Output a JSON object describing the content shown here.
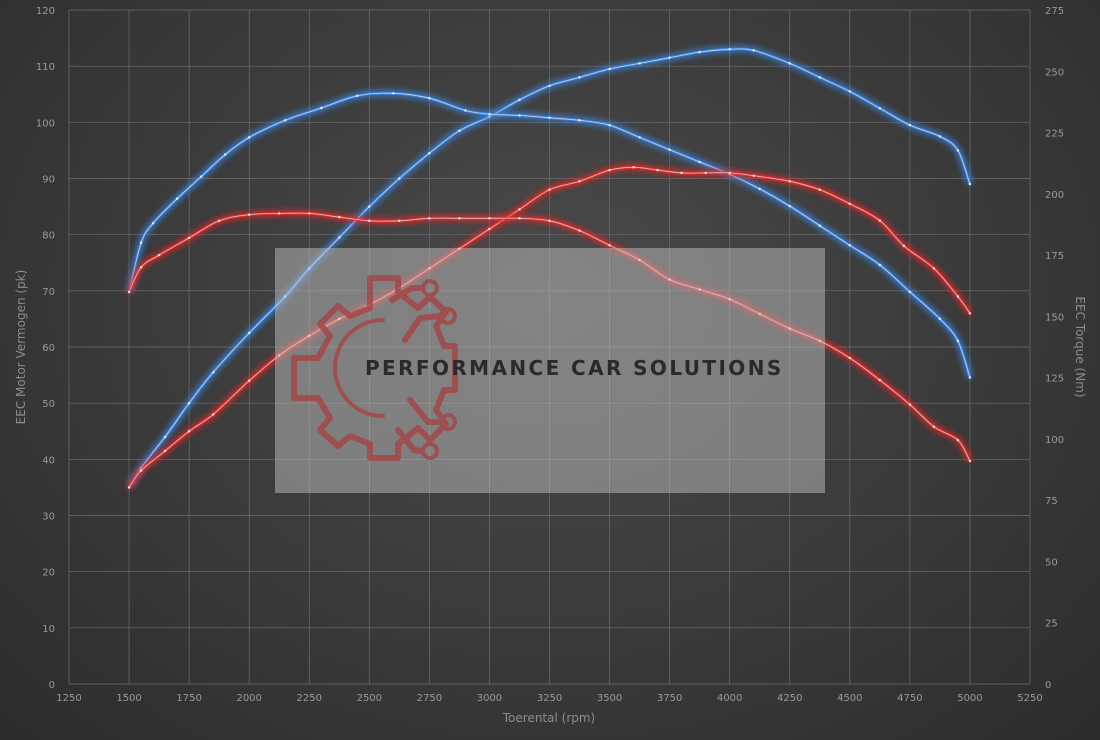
{
  "chart_data": {
    "type": "line",
    "xlabel": "Toerental (rpm)",
    "ylabel_left": "EEC Motor Vermogen (pk)",
    "ylabel_right": "EEC Torque (Nm)",
    "xlim": [
      1250,
      5250
    ],
    "ylim_left": [
      0,
      120
    ],
    "ylim_right": [
      0,
      275
    ],
    "x_ticks": [
      "1250",
      "1500",
      "1750",
      "2000",
      "2250",
      "2500",
      "2750",
      "3000",
      "3250",
      "3500",
      "3750",
      "4000",
      "4250",
      "4500",
      "4750",
      "5000",
      "5250"
    ],
    "y_left_ticks": [
      "0",
      "10",
      "20",
      "30",
      "40",
      "50",
      "60",
      "70",
      "80",
      "90",
      "100",
      "110",
      "120"
    ],
    "y_right_ticks": [
      "0",
      "25",
      "50",
      "75",
      "100",
      "125",
      "150",
      "175",
      "200",
      "225",
      "250",
      "275"
    ],
    "grid": true,
    "series": [
      {
        "color": "#3e86e0",
        "axis": "left",
        "points": [
          [
            1500,
            35
          ],
          [
            1550,
            38.5
          ],
          [
            1650,
            44
          ],
          [
            1750,
            50
          ],
          [
            1850,
            55.5
          ],
          [
            2000,
            62.5
          ],
          [
            2150,
            69
          ],
          [
            2250,
            74
          ],
          [
            2375,
            79.5
          ],
          [
            2500,
            85
          ],
          [
            2625,
            90
          ],
          [
            2750,
            94.5
          ],
          [
            2875,
            98.5
          ],
          [
            3000,
            101
          ],
          [
            3125,
            104
          ],
          [
            3250,
            106.5
          ],
          [
            3375,
            108
          ],
          [
            3500,
            109.5
          ],
          [
            3625,
            110.5
          ],
          [
            3750,
            111.5
          ],
          [
            3875,
            112.5
          ],
          [
            4000,
            113
          ],
          [
            4100,
            112.8
          ],
          [
            4250,
            110.5
          ],
          [
            4375,
            108
          ],
          [
            4500,
            105.5
          ],
          [
            4625,
            102.5
          ],
          [
            4750,
            99.5
          ],
          [
            4875,
            97.5
          ],
          [
            4950,
            95
          ],
          [
            5000,
            89
          ]
        ]
      },
      {
        "color": "#3e86e0",
        "axis": "right",
        "points": [
          [
            1500,
            160
          ],
          [
            1550,
            180
          ],
          [
            1600,
            188
          ],
          [
            1700,
            198
          ],
          [
            1800,
            207
          ],
          [
            1900,
            216
          ],
          [
            2000,
            223
          ],
          [
            2150,
            230
          ],
          [
            2300,
            235
          ],
          [
            2450,
            240
          ],
          [
            2600,
            241
          ],
          [
            2750,
            239
          ],
          [
            2900,
            234
          ],
          [
            3000,
            232.5
          ],
          [
            3125,
            232
          ],
          [
            3250,
            231
          ],
          [
            3375,
            230
          ],
          [
            3500,
            228
          ],
          [
            3625,
            223
          ],
          [
            3750,
            218
          ],
          [
            3875,
            213
          ],
          [
            4000,
            208
          ],
          [
            4125,
            202
          ],
          [
            4250,
            195
          ],
          [
            4375,
            187
          ],
          [
            4500,
            179
          ],
          [
            4625,
            171
          ],
          [
            4750,
            160
          ],
          [
            4875,
            149
          ],
          [
            4950,
            140
          ],
          [
            5000,
            125
          ]
        ]
      },
      {
        "color": "#e23030",
        "axis": "left",
        "points": [
          [
            1500,
            35
          ],
          [
            1550,
            38
          ],
          [
            1650,
            41.5
          ],
          [
            1750,
            45
          ],
          [
            1850,
            48
          ],
          [
            2000,
            54
          ],
          [
            2125,
            58.5
          ],
          [
            2250,
            62
          ],
          [
            2375,
            65
          ],
          [
            2500,
            67.5
          ],
          [
            2625,
            70.5
          ],
          [
            2750,
            74
          ],
          [
            2875,
            77.5
          ],
          [
            3000,
            81
          ],
          [
            3125,
            84.5
          ],
          [
            3250,
            88
          ],
          [
            3375,
            89.5
          ],
          [
            3500,
            91.5
          ],
          [
            3600,
            92
          ],
          [
            3700,
            91.5
          ],
          [
            3800,
            91
          ],
          [
            3900,
            91
          ],
          [
            4000,
            91
          ],
          [
            4100,
            90.5
          ],
          [
            4250,
            89.5
          ],
          [
            4375,
            88
          ],
          [
            4500,
            85.5
          ],
          [
            4625,
            82.5
          ],
          [
            4725,
            78
          ],
          [
            4850,
            74
          ],
          [
            4950,
            69
          ],
          [
            5000,
            66
          ]
        ]
      },
      {
        "color": "#e23030",
        "axis": "right",
        "points": [
          [
            1500,
            160
          ],
          [
            1550,
            170
          ],
          [
            1625,
            175
          ],
          [
            1750,
            182
          ],
          [
            1875,
            189
          ],
          [
            2000,
            191.5
          ],
          [
            2125,
            192
          ],
          [
            2250,
            192
          ],
          [
            2375,
            190.5
          ],
          [
            2500,
            189
          ],
          [
            2625,
            189
          ],
          [
            2750,
            190
          ],
          [
            2875,
            190
          ],
          [
            3000,
            190
          ],
          [
            3125,
            190
          ],
          [
            3250,
            189
          ],
          [
            3375,
            185
          ],
          [
            3500,
            179
          ],
          [
            3625,
            173
          ],
          [
            3750,
            165
          ],
          [
            3875,
            161
          ],
          [
            4000,
            157
          ],
          [
            4125,
            151
          ],
          [
            4250,
            145
          ],
          [
            4375,
            140
          ],
          [
            4500,
            133
          ],
          [
            4625,
            124
          ],
          [
            4750,
            114
          ],
          [
            4850,
            105
          ],
          [
            4950,
            99.5
          ],
          [
            5000,
            91
          ]
        ]
      }
    ]
  },
  "watermark": {
    "text": "PERFORMANCE CAR SOLUTIONS",
    "logo_icon": "gear-circuit-logo-icon"
  }
}
